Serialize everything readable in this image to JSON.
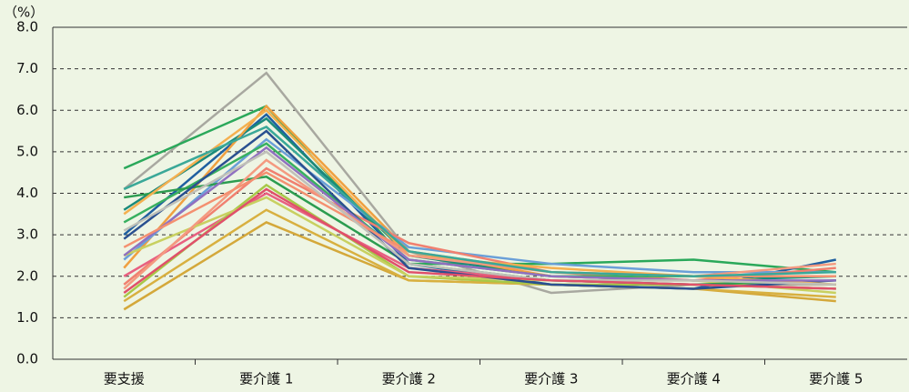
{
  "chart_data": {
    "type": "line",
    "y_label": "（%）",
    "categories": [
      "要支援",
      "要介護 1",
      "要介護 2",
      "要介護 3",
      "要介護 4",
      "要介護 5"
    ],
    "ylim": [
      0,
      8
    ],
    "yticks": [
      {
        "value": 0,
        "label": "0.0"
      },
      {
        "value": 1,
        "label": "1.0"
      },
      {
        "value": 2,
        "label": "2.0"
      },
      {
        "value": 3,
        "label": "3.0"
      },
      {
        "value": 4,
        "label": "4.0"
      },
      {
        "value": 5,
        "label": "5.0"
      },
      {
        "value": 6,
        "label": "6.0"
      },
      {
        "value": 7,
        "label": "7.0"
      },
      {
        "value": 8,
        "label": "8.0"
      }
    ],
    "grid": true,
    "series": [
      {
        "color": "#a8a8a0",
        "values": [
          4.1,
          6.9,
          2.6,
          1.6,
          1.8,
          1.8
        ]
      },
      {
        "color": "#2aa85a",
        "values": [
          4.6,
          6.1,
          2.3,
          2.3,
          2.4,
          2.1
        ]
      },
      {
        "color": "#1f5fa0",
        "values": [
          3.0,
          5.9,
          2.3,
          1.8,
          1.7,
          2.4
        ]
      },
      {
        "color": "#1a8a7a",
        "values": [
          3.6,
          5.8,
          2.5,
          2.0,
          1.9,
          2.0
        ]
      },
      {
        "color": "#f0a040",
        "values": [
          2.2,
          6.1,
          2.6,
          2.0,
          1.9,
          1.8
        ]
      },
      {
        "color": "#6a9fd8",
        "values": [
          2.4,
          5.3,
          2.7,
          2.3,
          2.1,
          2.1
        ]
      },
      {
        "color": "#f08070",
        "values": [
          1.8,
          4.6,
          2.8,
          2.1,
          1.9,
          2.2
        ]
      },
      {
        "color": "#e86080",
        "values": [
          2.0,
          4.0,
          2.2,
          1.9,
          1.8,
          1.7
        ]
      },
      {
        "color": "#d4a83a",
        "values": [
          1.2,
          3.3,
          1.9,
          1.8,
          1.7,
          1.4
        ]
      },
      {
        "color": "#d8b040",
        "values": [
          1.4,
          3.6,
          1.9,
          1.8,
          1.7,
          1.5
        ]
      },
      {
        "color": "#a8c848",
        "values": [
          1.5,
          4.2,
          2.0,
          1.8,
          1.8,
          1.7
        ]
      },
      {
        "color": "#c8d060",
        "values": [
          2.5,
          3.9,
          2.0,
          1.9,
          1.9,
          1.6
        ]
      },
      {
        "color": "#38b060",
        "values": [
          3.3,
          5.2,
          2.4,
          2.0,
          2.0,
          2.0
        ]
      },
      {
        "color": "#2c9c50",
        "values": [
          3.9,
          4.4,
          2.3,
          1.9,
          1.8,
          1.9
        ]
      },
      {
        "color": "#2a5090",
        "values": [
          2.9,
          5.5,
          2.2,
          1.8,
          1.7,
          1.9
        ]
      },
      {
        "color": "#f4b050",
        "values": [
          3.5,
          6.0,
          2.5,
          2.2,
          2.0,
          1.8
        ]
      },
      {
        "color": "#9070c0",
        "values": [
          2.5,
          5.1,
          2.4,
          2.0,
          1.9,
          1.9
        ]
      },
      {
        "color": "#f49a80",
        "values": [
          1.7,
          4.8,
          2.5,
          2.1,
          2.0,
          2.3
        ]
      },
      {
        "color": "#f49070",
        "values": [
          2.7,
          4.5,
          2.6,
          2.1,
          2.0,
          2.0
        ]
      },
      {
        "color": "#c0c0b8",
        "values": [
          3.1,
          5.0,
          2.3,
          1.9,
          1.9,
          1.8
        ]
      },
      {
        "color": "#e0506a",
        "values": [
          1.6,
          4.1,
          2.1,
          1.9,
          1.8,
          1.7
        ]
      },
      {
        "color": "#3aa898",
        "values": [
          4.1,
          5.6,
          2.6,
          2.1,
          2.0,
          2.1
        ]
      }
    ]
  }
}
